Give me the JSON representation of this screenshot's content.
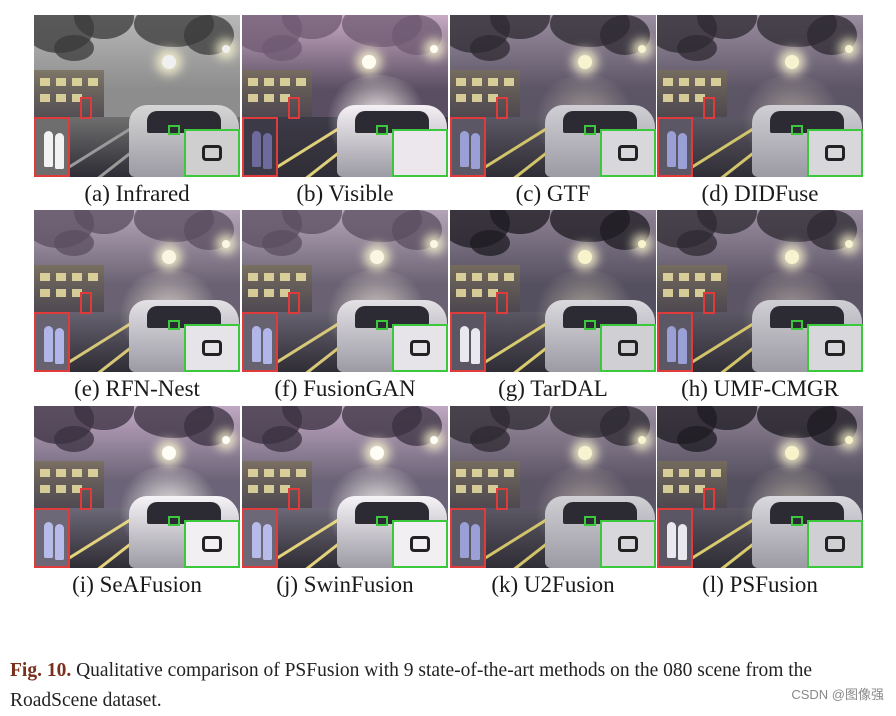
{
  "panels": [
    {
      "label": "(a)  Infrared",
      "style": "ir"
    },
    {
      "label": "(b)  Visible",
      "style": "vis"
    },
    {
      "label": "(c)  GTF",
      "style": "fuse"
    },
    {
      "label": "(d)  DIDFuse",
      "style": "fuse"
    },
    {
      "label": "(e)  RFN-Nest",
      "style": "soft"
    },
    {
      "label": "(f)  FusionGAN",
      "style": "soft"
    },
    {
      "label": "(g)  TarDAL",
      "style": "sharp"
    },
    {
      "label": "(h)  UMF-CMGR",
      "style": "fuse"
    },
    {
      "label": "(i)  SeAFusion",
      "style": "bright"
    },
    {
      "label": "(j)  SwinFusion",
      "style": "bright"
    },
    {
      "label": "(k)  U2Fusion",
      "style": "fuse"
    },
    {
      "label": "(l)  PSFusion",
      "style": "sharp"
    }
  ],
  "caption": {
    "fig": "Fig. 10.",
    "text": " Qualitative comparison of PSFusion with 9 state-of-the-art methods on the 080 scene from the RoadScene dataset."
  },
  "watermark": "CSDN @图像强",
  "colors": {
    "red_box": "#e03a3a",
    "green_box": "#3cc83c",
    "fig_label": "#7a2e1c"
  }
}
